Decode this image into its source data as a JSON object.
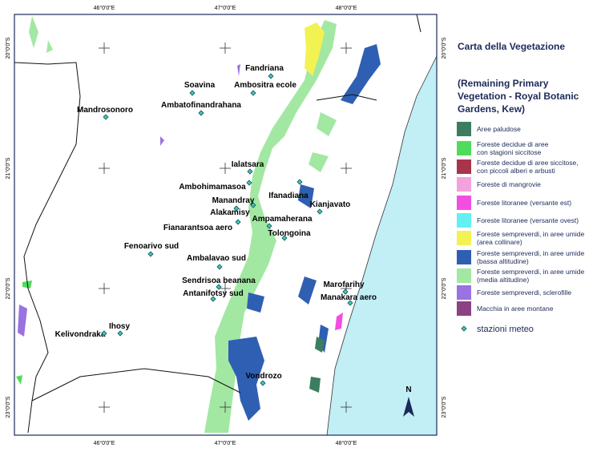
{
  "title": "Carta della Vegetazione",
  "subtitle": [
    "(Remaining Primary",
    "Vegetation - Royal Botanic",
    "Gardens, Kew)"
  ],
  "coords": {
    "top": [
      "46°0'0\"E",
      "47°0'0\"E",
      "48°0'0\"E"
    ],
    "bottom": [
      "46°0'0\"E",
      "47°0'0\"E",
      "48°0'0\"E"
    ],
    "left": [
      "20°0'0\"S",
      "21°0'0\"S",
      "22°0'0\"S",
      "23°0'0\"S"
    ],
    "right": [
      "20°0'0\"S",
      "21°0'0\"S",
      "22°0'0\"S",
      "23°0'0\"S"
    ]
  },
  "legend": [
    {
      "lines": [
        "Aree paludose"
      ],
      "color": "#3c7d62"
    },
    {
      "lines": [
        "Foreste decidue di aree",
        "con stagioni siccitose"
      ],
      "color": "#4fdc5c"
    },
    {
      "lines": [
        "Foreste decidue di aree siccitose,",
        "con piccoli alberi e arbusti"
      ],
      "color": "#a8344c"
    },
    {
      "lines": [
        "Foreste di mangrovie"
      ],
      "color": "#f2a2dc"
    },
    {
      "lines": [
        "Foreste litoranee (versante est)"
      ],
      "color": "#f24fe2"
    },
    {
      "lines": [
        "Foreste litoranee (versante ovest)"
      ],
      "color": "#62f0f2"
    },
    {
      "lines": [
        "Foreste sempreverdi, in aree umide",
        "(area collinare)"
      ],
      "color": "#f2f252"
    },
    {
      "lines": [
        "Foreste sempreverdi, in aree umide",
        "(bassa altitudine)"
      ],
      "color": "#2f5fb2"
    },
    {
      "lines": [
        "Foreste sempreverdi, in aree umide",
        "(media altitudine)"
      ],
      "color": "#a2e8a2"
    },
    {
      "lines": [
        "Foreste sempreverdi, sclerofille"
      ],
      "color": "#9a72e2"
    },
    {
      "lines": [
        "Macchia in aree montane"
      ],
      "color": "#8a4282"
    }
  ],
  "station_legend": "stazioni meteo",
  "stations": [
    "Fandriana",
    "Soavina",
    "Ambositra ecole",
    "Mandrosonoro",
    "Ambatofinandrahana",
    "Ialatsara",
    "Ambohimamasoa",
    "Ifanadiana",
    "Manandray",
    "Kianjavato",
    "Alakamisy",
    "Ampamaherana",
    "Fianarantsoa aero",
    "Tolongoina",
    "Fenoarivo sud",
    "Ambalavao sud",
    "Sendrisoa beanana",
    "Antanifotsy sud",
    "Marofarihy",
    "Manakara aero",
    "Ihosy",
    "Kelivondraka",
    "Vondrozo"
  ],
  "north": "N"
}
